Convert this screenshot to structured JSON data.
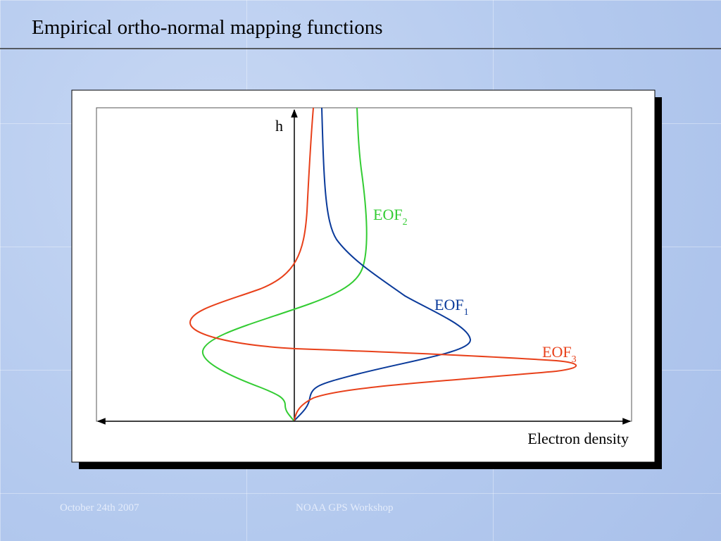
{
  "header": {
    "title": "Empirical ortho-normal mapping functions"
  },
  "diagram": {
    "y_axis_label": "h",
    "x_axis_label": "Electron density",
    "curves": [
      {
        "base": "EOF",
        "sub": "2"
      },
      {
        "base": "EOF",
        "sub": "1"
      },
      {
        "base": "EOF",
        "sub": "3"
      }
    ]
  },
  "footer": {
    "date": "October 24th 2007",
    "event": "NOAA GPS Workshop"
  }
}
